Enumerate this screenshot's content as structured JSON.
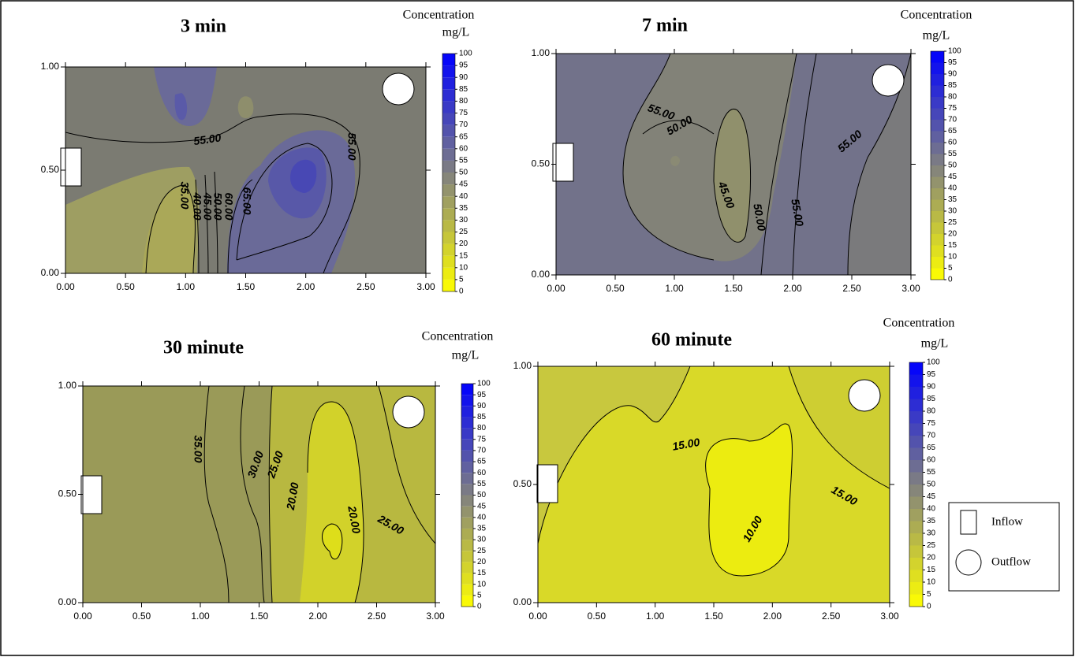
{
  "chart_data": [
    {
      "type": "contour",
      "title": "3 min",
      "xlim": [
        0,
        3
      ],
      "ylim": [
        0,
        1
      ],
      "xticks": [
        {
          "value": 0,
          "label": "0.00"
        },
        {
          "value": 0.5,
          "label": "0.50"
        },
        {
          "value": 1,
          "label": "1.00"
        },
        {
          "value": 1.5,
          "label": "1.50"
        },
        {
          "value": 2,
          "label": "2.00"
        },
        {
          "value": 2.5,
          "label": "2.50"
        },
        {
          "value": 3,
          "label": "3.00"
        }
      ],
      "yticks": [
        {
          "value": 0,
          "label": "0.00"
        },
        {
          "value": 0.5,
          "label": "0.50"
        },
        {
          "value": 1,
          "label": "1.00"
        }
      ],
      "colorbar": {
        "title": "Concentration",
        "unit": "mg/L",
        "ticks": [
          0,
          5,
          10,
          15,
          20,
          25,
          30,
          35,
          40,
          45,
          50,
          55,
          60,
          65,
          70,
          75,
          80,
          85,
          90,
          95,
          100
        ],
        "colors": [
          "#ffff00",
          "#808080",
          "#0000ff"
        ]
      },
      "contours": [
        {
          "value": 55,
          "label": "55.00"
        },
        {
          "value": 35,
          "label": "35.00"
        },
        {
          "value": 40,
          "label": "40.00"
        },
        {
          "value": 45,
          "label": "45.00"
        },
        {
          "value": 50,
          "label": "50.00"
        },
        {
          "value": 60,
          "label": "60.00"
        },
        {
          "value": 65,
          "label": "65.00"
        },
        {
          "value": 55,
          "label": "55.00"
        }
      ]
    },
    {
      "type": "contour",
      "title": "7 min",
      "xlim": [
        0,
        3
      ],
      "ylim": [
        0,
        1
      ],
      "xticks": [
        {
          "value": 0,
          "label": "0.00"
        },
        {
          "value": 0.5,
          "label": "0.50"
        },
        {
          "value": 1,
          "label": "1.00"
        },
        {
          "value": 1.5,
          "label": "1.50"
        },
        {
          "value": 2,
          "label": "2.00"
        },
        {
          "value": 2.5,
          "label": "2.50"
        },
        {
          "value": 3,
          "label": "3.00"
        }
      ],
      "yticks": [
        {
          "value": 0,
          "label": "0.00"
        },
        {
          "value": 0.5,
          "label": "0.50"
        },
        {
          "value": 1,
          "label": "1.00"
        }
      ],
      "colorbar": {
        "title": "Concentration",
        "unit": "mg/L",
        "ticks": [
          0,
          5,
          10,
          15,
          20,
          25,
          30,
          35,
          40,
          45,
          50,
          55,
          60,
          65,
          70,
          75,
          80,
          85,
          90,
          95,
          100
        ],
        "colors": [
          "#ffff00",
          "#808080",
          "#0000ff"
        ]
      },
      "contours": [
        {
          "value": 55,
          "label": "55.00"
        },
        {
          "value": 50,
          "label": "50.00"
        },
        {
          "value": 45,
          "label": "45.00"
        },
        {
          "value": 50,
          "label": "50.00"
        },
        {
          "value": 55,
          "label": "55.00"
        },
        {
          "value": 55,
          "label": "55.00"
        }
      ]
    },
    {
      "type": "contour",
      "title": "30 minute",
      "xlim": [
        0,
        3
      ],
      "ylim": [
        0,
        1
      ],
      "xticks": [
        {
          "value": 0,
          "label": "0.00"
        },
        {
          "value": 0.5,
          "label": "0.50"
        },
        {
          "value": 1,
          "label": "1.00"
        },
        {
          "value": 1.5,
          "label": "1.50"
        },
        {
          "value": 2,
          "label": "2.00"
        },
        {
          "value": 2.5,
          "label": "2.50"
        },
        {
          "value": 3,
          "label": "3.00"
        }
      ],
      "yticks": [
        {
          "value": 0,
          "label": "0.00"
        },
        {
          "value": 0.5,
          "label": "0.50"
        },
        {
          "value": 1,
          "label": "1.00"
        }
      ],
      "colorbar": {
        "title": "Concentration",
        "unit": "mg/L",
        "ticks": [
          0,
          5,
          10,
          15,
          20,
          25,
          30,
          35,
          40,
          45,
          50,
          55,
          60,
          65,
          70,
          75,
          80,
          85,
          90,
          95,
          100
        ],
        "colors": [
          "#ffff00",
          "#808080",
          "#0000ff"
        ]
      },
      "contours": [
        {
          "value": 35,
          "label": "35.00"
        },
        {
          "value": 30,
          "label": "30.00"
        },
        {
          "value": 25,
          "label": "25.00"
        },
        {
          "value": 20,
          "label": "20.00"
        },
        {
          "value": 20,
          "label": "20.00"
        },
        {
          "value": 25,
          "label": "25.00"
        }
      ]
    },
    {
      "type": "contour",
      "title": "60 minute",
      "xlim": [
        0,
        3
      ],
      "ylim": [
        0,
        1
      ],
      "xticks": [
        {
          "value": 0,
          "label": "0.00"
        },
        {
          "value": 0.5,
          "label": "0.50"
        },
        {
          "value": 1,
          "label": "1.00"
        },
        {
          "value": 1.5,
          "label": "1.50"
        },
        {
          "value": 2,
          "label": "2.00"
        },
        {
          "value": 2.5,
          "label": "2.50"
        },
        {
          "value": 3,
          "label": "3.00"
        }
      ],
      "yticks": [
        {
          "value": 0,
          "label": "0.00"
        },
        {
          "value": 0.5,
          "label": "0.50"
        },
        {
          "value": 1,
          "label": "1.00"
        }
      ],
      "colorbar": {
        "title": "Concentration",
        "unit": "mg/L",
        "ticks": [
          0,
          5,
          10,
          15,
          20,
          25,
          30,
          35,
          40,
          45,
          50,
          55,
          60,
          65,
          70,
          75,
          80,
          85,
          90,
          95,
          100
        ],
        "colors": [
          "#ffff00",
          "#808080",
          "#0000ff"
        ]
      },
      "contours": [
        {
          "value": 15,
          "label": "15.00"
        },
        {
          "value": 10,
          "label": "10.00"
        },
        {
          "value": 15,
          "label": "15.00"
        }
      ]
    }
  ],
  "legend": [
    "Inflow",
    "Outflow"
  ]
}
